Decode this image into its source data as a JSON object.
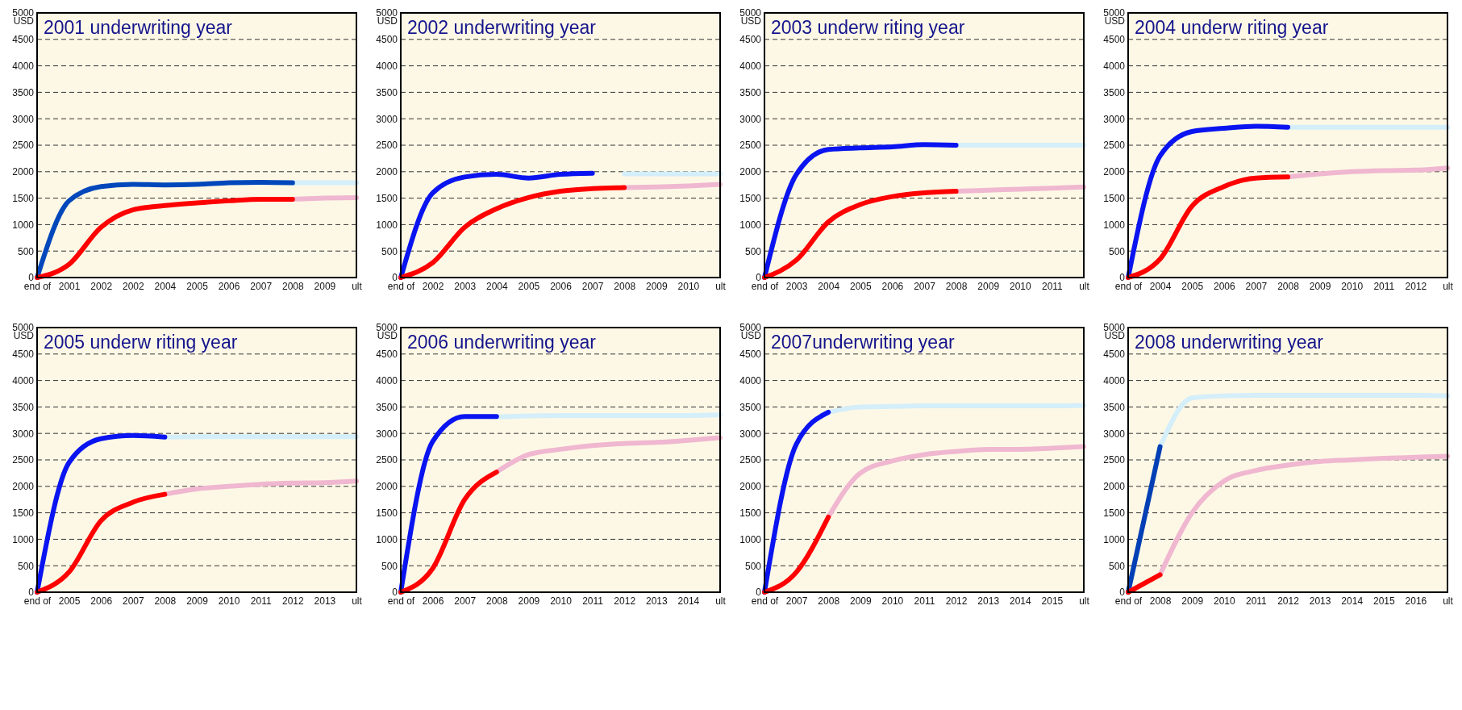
{
  "chart_data": [
    {
      "type": "line",
      "title": "2001 underwriting year",
      "ylabel": "USD",
      "categories": [
        "end of",
        "2001",
        "2002",
        "2002",
        "2004",
        "2005",
        "2006",
        "2007",
        "2008",
        "2009",
        "ult"
      ],
      "ylim": [
        0,
        5000
      ],
      "yticks": [
        0,
        500,
        1000,
        1500,
        2000,
        2500,
        3000,
        3500,
        4000,
        4500,
        5000
      ],
      "grid": "y",
      "series": [
        {
          "color": "#d4eefa",
          "values": [
            null,
            null,
            null,
            null,
            null,
            null,
            null,
            null,
            1790,
            1790,
            1790
          ]
        },
        {
          "color": "#f0b7d0",
          "values": [
            null,
            null,
            null,
            null,
            null,
            null,
            null,
            null,
            1480,
            1500,
            1510
          ]
        },
        {
          "color": "#0047bb",
          "values": [
            0,
            1450,
            1720,
            1760,
            1750,
            1760,
            1790,
            1800,
            1790,
            null,
            null
          ]
        },
        {
          "color": "#ff0000",
          "values": [
            0,
            250,
            950,
            1280,
            1360,
            1410,
            1450,
            1480,
            1480,
            null,
            null
          ]
        }
      ]
    },
    {
      "type": "line",
      "title": "2002 underwriting year",
      "ylabel": "USD",
      "categories": [
        "end of",
        "2002",
        "2003",
        "2004",
        "2005",
        "2006",
        "2007",
        "2008",
        "2009",
        "2010",
        "ult"
      ],
      "ylim": [
        0,
        5000
      ],
      "yticks": [
        0,
        500,
        1000,
        1500,
        2000,
        2500,
        3000,
        3500,
        4000,
        4500,
        5000
      ],
      "grid": "y",
      "series": [
        {
          "color": "#d4eefa",
          "values": [
            null,
            null,
            null,
            null,
            null,
            null,
            null,
            1960,
            1960,
            1960,
            1960
          ]
        },
        {
          "color": "#f0b7d0",
          "values": [
            null,
            null,
            null,
            null,
            null,
            null,
            null,
            1700,
            1710,
            1730,
            1760
          ]
        },
        {
          "color": "#0a14f0",
          "values": [
            0,
            1600,
            1900,
            1950,
            1880,
            1950,
            1970,
            null,
            null,
            null,
            null
          ]
        },
        {
          "color": "#ff0000",
          "values": [
            0,
            280,
            950,
            1300,
            1510,
            1630,
            1680,
            1700,
            null,
            null,
            null
          ]
        }
      ]
    },
    {
      "type": "line",
      "title": "2003 underw riting year",
      "ylabel": "USD",
      "categories": [
        "end of",
        "2003",
        "2004",
        "2005",
        "2006",
        "2007",
        "2008",
        "2009",
        "2010",
        "2011",
        "ult"
      ],
      "ylim": [
        0,
        5000
      ],
      "yticks": [
        0,
        500,
        1000,
        1500,
        2000,
        2500,
        3000,
        3500,
        4000,
        4500,
        5000
      ],
      "grid": "y",
      "series": [
        {
          "color": "#d4eefa",
          "values": [
            null,
            null,
            null,
            null,
            null,
            null,
            2500,
            2500,
            2500,
            2500,
            2500
          ]
        },
        {
          "color": "#f0b7d0",
          "values": [
            null,
            null,
            null,
            null,
            null,
            null,
            1630,
            1650,
            1670,
            1690,
            1710
          ]
        },
        {
          "color": "#0a14f0",
          "values": [
            0,
            1950,
            2420,
            2450,
            2470,
            2510,
            2500,
            null,
            null,
            null,
            null
          ]
        },
        {
          "color": "#ff0000",
          "values": [
            0,
            330,
            1050,
            1380,
            1530,
            1600,
            1630,
            null,
            null,
            null,
            null
          ]
        }
      ]
    },
    {
      "type": "line",
      "title": "2004 underw riting year",
      "ylabel": "USD",
      "categories": [
        "end of",
        "2004",
        "2005",
        "2006",
        "2007",
        "2008",
        "2009",
        "2010",
        "2011",
        "2012",
        "ult"
      ],
      "ylim": [
        0,
        5000
      ],
      "yticks": [
        0,
        500,
        1000,
        1500,
        2000,
        2500,
        3000,
        3500,
        4000,
        4500,
        5000
      ],
      "grid": "y",
      "series": [
        {
          "color": "#d4eefa",
          "values": [
            null,
            null,
            null,
            null,
            null,
            2840,
            2840,
            2840,
            2840,
            2840,
            2840
          ]
        },
        {
          "color": "#f0b7d0",
          "values": [
            null,
            null,
            null,
            null,
            null,
            1900,
            1960,
            2000,
            2020,
            2030,
            2070
          ]
        },
        {
          "color": "#0a14f0",
          "values": [
            0,
            2300,
            2760,
            2820,
            2860,
            2840,
            null,
            null,
            null,
            null,
            null
          ]
        },
        {
          "color": "#ff0000",
          "values": [
            0,
            350,
            1350,
            1720,
            1880,
            1900,
            null,
            null,
            null,
            null,
            null
          ]
        }
      ]
    },
    {
      "type": "line",
      "title": "2005 underw riting year",
      "ylabel": "USD",
      "categories": [
        "end of",
        "2005",
        "2006",
        "2007",
        "2008",
        "2009",
        "2010",
        "2011",
        "2012",
        "2013",
        "ult"
      ],
      "ylim": [
        0,
        5000
      ],
      "yticks": [
        0,
        500,
        1000,
        1500,
        2000,
        2500,
        3000,
        3500,
        4000,
        4500,
        5000
      ],
      "grid": "y",
      "series": [
        {
          "color": "#d4eefa",
          "values": [
            null,
            null,
            null,
            null,
            2930,
            2940,
            2940,
            2940,
            2940,
            2940,
            2940
          ]
        },
        {
          "color": "#f0b7d0",
          "values": [
            null,
            null,
            null,
            null,
            1850,
            1950,
            2000,
            2040,
            2060,
            2070,
            2100
          ]
        },
        {
          "color": "#0a14f0",
          "values": [
            0,
            2450,
            2900,
            2960,
            2930,
            null,
            null,
            null,
            null,
            null,
            null
          ]
        },
        {
          "color": "#ff0000",
          "values": [
            0,
            380,
            1350,
            1700,
            1850,
            null,
            null,
            null,
            null,
            null,
            null
          ]
        }
      ]
    },
    {
      "type": "line",
      "title": "2006 underwriting year",
      "ylabel": "USD",
      "categories": [
        "end of",
        "2006",
        "2007",
        "2008",
        "2009",
        "2010",
        "2011",
        "2012",
        "2013",
        "2014",
        "ult"
      ],
      "ylim": [
        0,
        5000
      ],
      "yticks": [
        0,
        500,
        1000,
        1500,
        2000,
        2500,
        3000,
        3500,
        4000,
        4500,
        5000
      ],
      "grid": "y",
      "series": [
        {
          "color": "#d4eefa",
          "values": [
            null,
            null,
            null,
            3310,
            3330,
            3340,
            3340,
            3340,
            3340,
            3340,
            3350
          ]
        },
        {
          "color": "#f0b7d0",
          "values": [
            null,
            null,
            null,
            2270,
            2600,
            2700,
            2770,
            2810,
            2830,
            2870,
            2920
          ]
        },
        {
          "color": "#0a14f0",
          "values": [
            0,
            2850,
            3320,
            3320,
            null,
            null,
            null,
            null,
            null,
            null,
            null
          ]
        },
        {
          "color": "#ff0000",
          "values": [
            0,
            450,
            1750,
            2270,
            null,
            null,
            null,
            null,
            null,
            null,
            null
          ]
        }
      ]
    },
    {
      "type": "line",
      "title": "2007underwriting year",
      "ylabel": "USD",
      "categories": [
        "end of",
        "2007",
        "2008",
        "2009",
        "2010",
        "2011",
        "2012",
        "2013",
        "2014",
        "2015",
        "ult"
      ],
      "ylim": [
        0,
        5000
      ],
      "yticks": [
        0,
        500,
        1000,
        1500,
        2000,
        2500,
        3000,
        3500,
        4000,
        4500,
        5000
      ],
      "grid": "y",
      "series": [
        {
          "color": "#d4eefa",
          "values": [
            null,
            null,
            3400,
            3500,
            3510,
            3520,
            3520,
            3520,
            3520,
            3520,
            3530
          ]
        },
        {
          "color": "#f0b7d0",
          "values": [
            null,
            null,
            1420,
            2250,
            2480,
            2600,
            2660,
            2700,
            2700,
            2720,
            2750
          ]
        },
        {
          "color": "#0a14f0",
          "values": [
            0,
            2800,
            3400,
            null,
            null,
            null,
            null,
            null,
            null,
            null,
            null
          ]
        },
        {
          "color": "#ff0000",
          "values": [
            0,
            380,
            1420,
            null,
            null,
            null,
            null,
            null,
            null,
            null,
            null
          ]
        }
      ]
    },
    {
      "type": "line",
      "title": "2008 underwriting year",
      "ylabel": "USD",
      "categories": [
        "end of",
        "2008",
        "2009",
        "2010",
        "2011",
        "2012",
        "2013",
        "2014",
        "2015",
        "2016",
        "ult"
      ],
      "ylim": [
        0,
        5000
      ],
      "yticks": [
        0,
        500,
        1000,
        1500,
        2000,
        2500,
        3000,
        3500,
        4000,
        4500,
        5000
      ],
      "grid": "y",
      "series": [
        {
          "color": "#d4eefa",
          "values": [
            null,
            2750,
            3670,
            3710,
            3720,
            3720,
            3720,
            3720,
            3720,
            3720,
            3710
          ]
        },
        {
          "color": "#f0b7d0",
          "values": [
            null,
            330,
            1500,
            2100,
            2300,
            2400,
            2470,
            2500,
            2530,
            2550,
            2570
          ]
        },
        {
          "color": "#003fb5",
          "values": [
            0,
            2750,
            null,
            null,
            null,
            null,
            null,
            null,
            null,
            null,
            null
          ]
        },
        {
          "color": "#ff0000",
          "values": [
            0,
            330,
            null,
            null,
            null,
            null,
            null,
            null,
            null,
            null,
            null
          ]
        }
      ]
    }
  ]
}
